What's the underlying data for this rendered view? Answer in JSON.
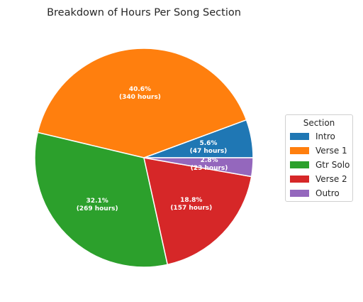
{
  "chart_data": {
    "type": "pie",
    "title": "Breakdown of Hours Per Song Section",
    "legend_title": "Section",
    "legend_position": "right",
    "slices": [
      {
        "label": "Intro",
        "value": 47,
        "percent_label": "5.6%",
        "hours_label": "(47 hours)",
        "color": "#1f77b4"
      },
      {
        "label": "Verse 1",
        "value": 340,
        "percent_label": "40.6%",
        "hours_label": "(340 hours)",
        "color": "#ff7f0e"
      },
      {
        "label": "Gtr Solo",
        "value": 269,
        "percent_label": "32.1%",
        "hours_label": "(269 hours)",
        "color": "#2ca02c"
      },
      {
        "label": "Verse 2",
        "value": 157,
        "percent_label": "18.8%",
        "hours_label": "(157 hours)",
        "color": "#d62728"
      },
      {
        "label": "Outro",
        "value": 23,
        "percent_label": "2.8%",
        "hours_label": "(23 hours)",
        "color": "#9467bd"
      }
    ]
  }
}
